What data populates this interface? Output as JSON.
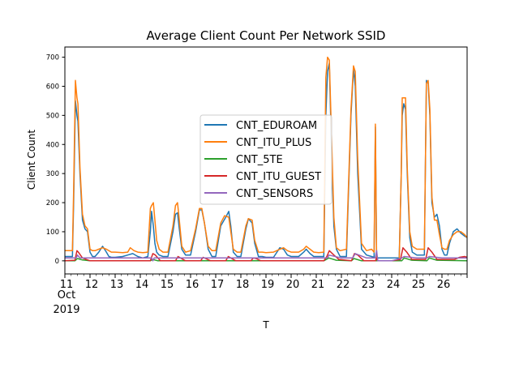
{
  "chart_data": {
    "type": "line",
    "title": "Average Client Count Per Network SSID",
    "xlabel": "T",
    "ylabel": "Client Count",
    "xlim": [
      11,
      27
    ],
    "ylim": [
      -45,
      735
    ],
    "x_ticks": [
      "11",
      "12",
      "13",
      "14",
      "15",
      "16",
      "17",
      "18",
      "19",
      "20",
      "21",
      "22",
      "23",
      "24",
      "25",
      "26"
    ],
    "x_tick_secondary": [
      "Oct",
      "2019"
    ],
    "y_ticks": [
      0,
      100,
      200,
      300,
      400,
      500,
      600,
      700
    ],
    "legend_position": "center",
    "grid": false,
    "series": [
      {
        "name": "CNT_EDUROAM",
        "color": "#1f77b4",
        "x": [
          11.0,
          11.3,
          11.35,
          11.42,
          11.48,
          11.52,
          11.6,
          11.7,
          11.8,
          11.9,
          12.0,
          12.1,
          12.2,
          12.35,
          12.5,
          12.65,
          12.75,
          12.85,
          13.0,
          13.3,
          13.5,
          13.7,
          13.9,
          14.1,
          14.3,
          14.4,
          14.45,
          14.52,
          14.58,
          14.65,
          14.75,
          14.9,
          15.1,
          15.3,
          15.4,
          15.48,
          15.55,
          15.65,
          15.8,
          16.0,
          16.2,
          16.35,
          16.45,
          16.55,
          16.7,
          16.85,
          17.0,
          17.2,
          17.4,
          17.52,
          17.6,
          17.7,
          17.85,
          18.0,
          18.2,
          18.3,
          18.45,
          18.55,
          18.7,
          18.85,
          19.0,
          19.3,
          19.55,
          19.7,
          19.85,
          20.0,
          20.3,
          20.5,
          20.6,
          20.75,
          20.9,
          21.1,
          21.3,
          21.38,
          21.45,
          21.52,
          21.6,
          21.7,
          21.8,
          21.95,
          22.2,
          22.38,
          22.48,
          22.55,
          22.65,
          22.8,
          23.0,
          23.2,
          23.3,
          23.35,
          23.4,
          23.45,
          23.5,
          23.65,
          24.0,
          24.3,
          24.38,
          24.42,
          24.48,
          24.55,
          24.62,
          24.72,
          24.82,
          25.0,
          25.3,
          25.38,
          25.45,
          25.52,
          25.6,
          25.7,
          25.8,
          25.9,
          26.0,
          26.1,
          26.2,
          26.3,
          26.45,
          26.6,
          26.75,
          26.9,
          27.0
        ],
        "values": [
          15,
          15,
          200,
          550,
          500,
          480,
          300,
          140,
          110,
          100,
          30,
          15,
          15,
          30,
          50,
          30,
          15,
          12,
          12,
          15,
          20,
          25,
          15,
          10,
          15,
          100,
          170,
          120,
          60,
          30,
          20,
          15,
          15,
          100,
          160,
          165,
          110,
          40,
          20,
          20,
          100,
          175,
          175,
          130,
          40,
          15,
          15,
          120,
          150,
          170,
          120,
          30,
          15,
          15,
          110,
          145,
          130,
          60,
          15,
          15,
          12,
          12,
          45,
          40,
          20,
          15,
          15,
          30,
          40,
          25,
          15,
          15,
          15,
          500,
          650,
          680,
          400,
          120,
          40,
          15,
          15,
          500,
          660,
          600,
          300,
          40,
          20,
          15,
          12,
          460,
          10,
          10,
          10,
          10,
          10,
          10,
          300,
          500,
          540,
          520,
          300,
          80,
          30,
          20,
          20,
          620,
          610,
          500,
          200,
          150,
          160,
          120,
          40,
          20,
          20,
          60,
          100,
          110,
          95,
          85,
          80
        ]
      },
      {
        "name": "CNT_ITU_PLUS",
        "color": "#ff7f0e",
        "x": [
          11.0,
          11.3,
          11.35,
          11.42,
          11.48,
          11.52,
          11.6,
          11.7,
          11.8,
          11.9,
          12.0,
          12.1,
          12.2,
          12.35,
          12.5,
          12.65,
          12.75,
          12.85,
          13.0,
          13.3,
          13.5,
          13.6,
          13.75,
          13.9,
          14.1,
          14.3,
          14.4,
          14.45,
          14.52,
          14.58,
          14.65,
          14.75,
          14.9,
          15.1,
          15.3,
          15.4,
          15.48,
          15.55,
          15.65,
          15.8,
          16.0,
          16.2,
          16.35,
          16.45,
          16.55,
          16.7,
          16.85,
          17.0,
          17.2,
          17.35,
          17.52,
          17.6,
          17.7,
          17.85,
          18.0,
          18.2,
          18.3,
          18.45,
          18.55,
          18.7,
          18.85,
          19.0,
          19.3,
          19.55,
          19.7,
          19.85,
          20.0,
          20.3,
          20.5,
          20.6,
          20.75,
          20.9,
          21.1,
          21.3,
          21.38,
          21.45,
          21.52,
          21.6,
          21.7,
          21.8,
          21.95,
          22.2,
          22.38,
          22.48,
          22.55,
          22.65,
          22.8,
          23.0,
          23.2,
          23.3,
          23.35,
          23.4,
          23.45,
          23.5,
          23.65,
          24.0,
          24.3,
          24.38,
          24.42,
          24.48,
          24.55,
          24.62,
          24.72,
          24.82,
          25.0,
          25.3,
          25.38,
          25.45,
          25.52,
          25.6,
          25.7,
          25.8,
          25.9,
          26.0,
          26.1,
          26.2,
          26.3,
          26.45,
          26.6,
          26.75,
          26.9,
          27.0
        ],
        "values": [
          35,
          35,
          240,
          620,
          560,
          540,
          320,
          160,
          120,
          110,
          40,
          35,
          35,
          40,
          45,
          40,
          35,
          30,
          30,
          28,
          30,
          45,
          35,
          30,
          28,
          30,
          180,
          190,
          200,
          140,
          70,
          40,
          30,
          30,
          120,
          190,
          200,
          140,
          50,
          30,
          35,
          110,
          180,
          180,
          130,
          50,
          35,
          35,
          130,
          155,
          150,
          100,
          40,
          30,
          30,
          120,
          145,
          140,
          70,
          30,
          30,
          28,
          30,
          40,
          45,
          35,
          30,
          30,
          40,
          50,
          40,
          30,
          28,
          30,
          630,
          700,
          690,
          450,
          150,
          45,
          35,
          40,
          520,
          670,
          650,
          350,
          60,
          35,
          40,
          30,
          470,
          0,
          0,
          0,
          0,
          0,
          0,
          300,
          560,
          560,
          560,
          320,
          100,
          50,
          40,
          40,
          610,
          620,
          520,
          220,
          140,
          140,
          90,
          45,
          40,
          40,
          70,
          90,
          100,
          100,
          90,
          80
        ]
      },
      {
        "name": "CNT_5TE",
        "color": "#2ca02c",
        "x": [
          11.0,
          11.4,
          11.5,
          11.7,
          12.0,
          14.4,
          14.5,
          14.7,
          21.3,
          21.5,
          21.8,
          22.4,
          22.5,
          22.8,
          23.4,
          23.5,
          24.0,
          24.4,
          24.5,
          24.8,
          25.4,
          25.5,
          25.8,
          27.0
        ],
        "values": [
          0,
          0,
          8,
          3,
          0,
          0,
          5,
          0,
          0,
          10,
          2,
          0,
          8,
          0,
          0,
          0,
          0,
          0,
          10,
          2,
          0,
          10,
          2,
          0
        ]
      },
      {
        "name": "CNT_ITU_GUEST",
        "color": "#d62728",
        "x": [
          11.0,
          11.4,
          11.48,
          11.55,
          11.7,
          12.0,
          14.4,
          14.5,
          14.6,
          14.8,
          15.4,
          15.5,
          15.6,
          15.8,
          16.4,
          16.5,
          16.6,
          16.8,
          17.4,
          17.5,
          17.6,
          17.8,
          18.4,
          18.5,
          18.6,
          18.8,
          21.3,
          21.42,
          21.52,
          21.7,
          21.9,
          22.4,
          22.52,
          22.65,
          22.9,
          23.35,
          23.4,
          23.45,
          23.5,
          24.0,
          24.35,
          24.45,
          24.6,
          24.8,
          25.35,
          25.45,
          25.6,
          25.8,
          26.5,
          26.7,
          26.9,
          27.0
        ],
        "values": [
          0,
          2,
          35,
          28,
          10,
          0,
          0,
          25,
          20,
          0,
          0,
          15,
          10,
          0,
          0,
          12,
          8,
          0,
          0,
          15,
          10,
          0,
          0,
          10,
          8,
          0,
          0,
          15,
          35,
          20,
          5,
          0,
          25,
          20,
          0,
          0,
          10,
          0,
          0,
          0,
          5,
          45,
          30,
          5,
          5,
          45,
          30,
          5,
          5,
          12,
          15,
          12
        ]
      },
      {
        "name": "CNT_SENSORS",
        "color": "#9467bd",
        "x": [
          11.0,
          11.45,
          11.5,
          11.6,
          12.0,
          14.45,
          14.5,
          14.55,
          20.0,
          21.45,
          21.5,
          22.0,
          22.45,
          22.55,
          23.0,
          23.35,
          23.4,
          23.45,
          23.5,
          24.0,
          24.4,
          24.5,
          25.0,
          25.4,
          25.5,
          26.0,
          27.0
        ],
        "values": [
          10,
          10,
          20,
          10,
          10,
          10,
          0,
          10,
          10,
          10,
          20,
          10,
          10,
          25,
          10,
          10,
          35,
          0,
          0,
          0,
          10,
          15,
          10,
          10,
          15,
          10,
          10
        ]
      }
    ]
  }
}
